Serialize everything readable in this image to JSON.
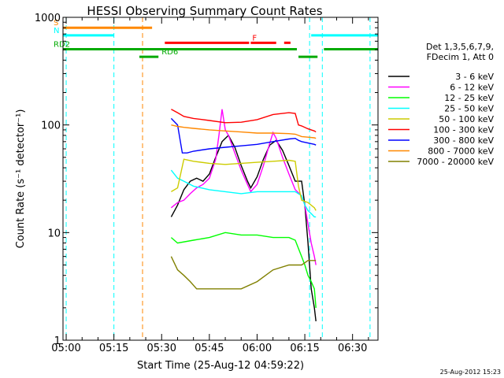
{
  "chart_data": {
    "type": "line",
    "title": "HESSI Observing Summary Count Rates",
    "xlabel": "Start Time (25-Aug-12 04:59:22)",
    "ylabel": "Count Rate (s⁻¹ detector⁻¹)",
    "x_unit": "minutes after 05:00 UT",
    "xlim": [
      -1,
      98
    ],
    "ylim": [
      1,
      1000
    ],
    "yscale": "log",
    "grid": false,
    "x_ticks": [
      {
        "value": 0,
        "label": "05:00"
      },
      {
        "value": 15,
        "label": "05:15"
      },
      {
        "value": 30,
        "label": "05:30"
      },
      {
        "value": 45,
        "label": "05:45"
      },
      {
        "value": 60,
        "label": "06:00"
      },
      {
        "value": 75,
        "label": "06:15"
      },
      {
        "value": 90,
        "label": "06:30"
      }
    ],
    "y_ticks": [
      {
        "value": 1,
        "label": "1"
      },
      {
        "value": 10,
        "label": "10"
      },
      {
        "value": 100,
        "label": "100"
      },
      {
        "value": 1000,
        "label": "1000"
      }
    ],
    "legend": {
      "placement": "right",
      "header": [
        "Det 1,3,5,6,7,9,",
        "FDecim 1, Att 0"
      ]
    },
    "series": [
      {
        "name": "3 - 6 keV",
        "color": "#000000",
        "x": [
          33,
          35,
          37,
          39,
          41,
          43,
          45,
          47,
          49,
          51,
          53,
          55,
          57,
          58,
          60,
          62,
          64,
          66,
          68,
          70,
          72,
          74,
          75,
          76,
          77,
          78,
          78.5
        ],
        "y": [
          14,
          18,
          25,
          30,
          32,
          30,
          35,
          50,
          70,
          80,
          62,
          42,
          30,
          26,
          33,
          48,
          65,
          72,
          58,
          42,
          30,
          30,
          18,
          8,
          3,
          2,
          1.5
        ]
      },
      {
        "name": "6 - 12 keV",
        "color": "#ff00ff",
        "x": [
          33,
          35,
          37,
          39,
          41,
          43,
          45,
          47,
          48,
          49,
          50,
          51,
          53,
          55,
          57,
          58,
          60,
          62,
          64,
          65,
          66,
          68,
          70,
          72,
          74,
          75,
          76,
          77,
          78,
          78.5
        ],
        "y": [
          17,
          19,
          20,
          23,
          26,
          28,
          32,
          48,
          80,
          140,
          90,
          80,
          55,
          38,
          28,
          24,
          28,
          42,
          68,
          85,
          75,
          50,
          35,
          25,
          22,
          18,
          12,
          8,
          6,
          5
        ]
      },
      {
        "name": "12 - 25 keV",
        "color": "#00ff00",
        "x": [
          33,
          35,
          40,
          45,
          50,
          55,
          60,
          65,
          70,
          72,
          74,
          75,
          76,
          77,
          78,
          78.5
        ],
        "y": [
          9,
          8,
          8.5,
          9,
          10,
          9.5,
          9.5,
          9,
          9,
          8.5,
          6,
          5,
          4,
          3.5,
          3,
          2
        ]
      },
      {
        "name": "25 - 50 keV",
        "color": "#00ffff",
        "x": [
          33,
          35,
          37,
          40,
          45,
          50,
          55,
          60,
          65,
          70,
          72,
          74,
          75,
          76,
          77,
          78,
          78.5
        ],
        "y": [
          38,
          32,
          30,
          27,
          25,
          24,
          23,
          24,
          24,
          24,
          24,
          22,
          18,
          16,
          15,
          14,
          14
        ]
      },
      {
        "name": "50 - 100 keV",
        "color": "#cccc00",
        "x": [
          33,
          35,
          37,
          40,
          45,
          50,
          55,
          60,
          65,
          70,
          72,
          73,
          74,
          76,
          78,
          78.5
        ],
        "y": [
          24,
          26,
          48,
          46,
          44,
          43,
          44,
          45,
          46,
          47,
          46,
          27,
          20,
          19,
          17,
          16
        ]
      },
      {
        "name": "100 - 300 keV",
        "color": "#ff0000",
        "x": [
          33,
          35,
          37,
          40,
          45,
          50,
          55,
          60,
          65,
          70,
          72,
          73,
          74,
          76,
          78,
          78.5
        ],
        "y": [
          140,
          130,
          120,
          115,
          110,
          105,
          106,
          112,
          125,
          130,
          128,
          100,
          98,
          92,
          88,
          86
        ]
      },
      {
        "name": "300 - 800 keV",
        "color": "#0000ff",
        "x": [
          33,
          35,
          36.5,
          38,
          40,
          45,
          50,
          55,
          60,
          65,
          70,
          72,
          73,
          74,
          76,
          78,
          78.5
        ],
        "y": [
          115,
          100,
          55,
          55,
          57,
          60,
          62,
          64,
          66,
          70,
          74,
          75,
          72,
          70,
          68,
          66,
          65
        ]
      },
      {
        "name": "800 - 7000 keV",
        "color": "#ff8800",
        "x": [
          33,
          35,
          37,
          40,
          45,
          50,
          55,
          60,
          65,
          70,
          72,
          74,
          76,
          78,
          78.5
        ],
        "y": [
          100,
          97,
          95,
          93,
          90,
          88,
          86,
          84,
          84,
          83,
          82,
          78,
          77,
          76,
          75
        ]
      },
      {
        "name": "7000 - 20000 keV",
        "color": "#808000",
        "x": [
          33,
          35,
          37,
          39,
          41,
          43,
          45,
          50,
          55,
          60,
          65,
          70,
          72,
          74,
          76,
          78,
          78.5
        ],
        "y": [
          6,
          4.5,
          4,
          3.5,
          3,
          3,
          3,
          3,
          3,
          3.5,
          4.5,
          5,
          5,
          5,
          5.5,
          5.5,
          5.5
        ]
      }
    ],
    "state_bars": [
      {
        "label": "S",
        "color": "#ff8800",
        "level": 800,
        "segments": [
          [
            -1,
            27
          ]
        ]
      },
      {
        "label": "N",
        "color": "#00ffff",
        "level": 680,
        "segments": [
          [
            -1,
            15
          ],
          [
            77,
            98
          ]
        ]
      },
      {
        "label": "F",
        "color": "#ff0000",
        "level": 580,
        "segments": [
          [
            31,
            57.5
          ],
          [
            58,
            66
          ],
          [
            68.5,
            70.5
          ]
        ]
      },
      {
        "label": "RD2",
        "color": "#00aa00",
        "level": 505,
        "segments": [
          [
            -1,
            72.5
          ],
          [
            81,
            98
          ]
        ]
      },
      {
        "label": "RD6",
        "color": "#00aa00",
        "level": 430,
        "segments": [
          [
            23,
            29
          ],
          [
            73,
            79
          ]
        ]
      }
    ],
    "vertical_markers": [
      {
        "x": 0,
        "color": "#00ffff"
      },
      {
        "x": 15,
        "color": "#00ffff"
      },
      {
        "x": 24,
        "color": "#ff8800"
      },
      {
        "x": 76.5,
        "color": "#00ffff"
      },
      {
        "x": 80.5,
        "color": "#00ffff"
      },
      {
        "x": 95.5,
        "color": "#00ffff"
      }
    ],
    "annotation": "25-Aug-2012 15:23"
  }
}
